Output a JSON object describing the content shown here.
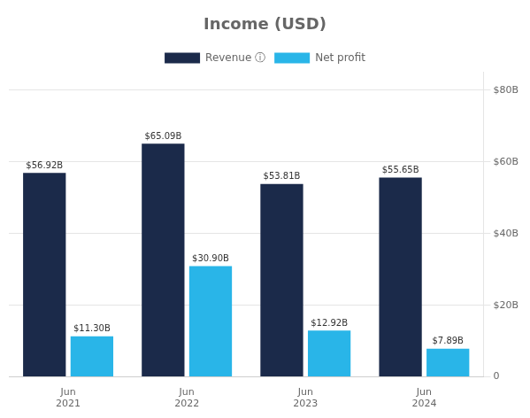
{
  "chart_data": {
    "type": "bar",
    "title": "Income (USD)",
    "categories": [
      "Jun\n2021",
      "Jun\n2022",
      "Jun\n2023",
      "Jun\n2024"
    ],
    "series": [
      {
        "name": "Revenue ⓘ",
        "color": "#1b2a4a",
        "values": [
          56.92,
          65.09,
          53.81,
          55.65
        ],
        "value_labels": [
          "$56.92B",
          "$65.09B",
          "$53.81B",
          "$55.65B"
        ]
      },
      {
        "name": "Net profit",
        "color": "#29b5e8",
        "values": [
          11.3,
          30.9,
          12.92,
          7.89
        ],
        "value_labels": [
          "$11.30B",
          "$30.90B",
          "$12.92B",
          "$7.89B"
        ]
      }
    ],
    "ylim": [
      0,
      85
    ],
    "yticks": [
      {
        "value": 0,
        "label": "0"
      },
      {
        "value": 20,
        "label": "$20B"
      },
      {
        "value": 40,
        "label": "$40B"
      },
      {
        "value": 60,
        "label": "$60B"
      },
      {
        "value": 80,
        "label": "$80B"
      }
    ],
    "grid": true,
    "legend": "top",
    "data_labels": true
  }
}
